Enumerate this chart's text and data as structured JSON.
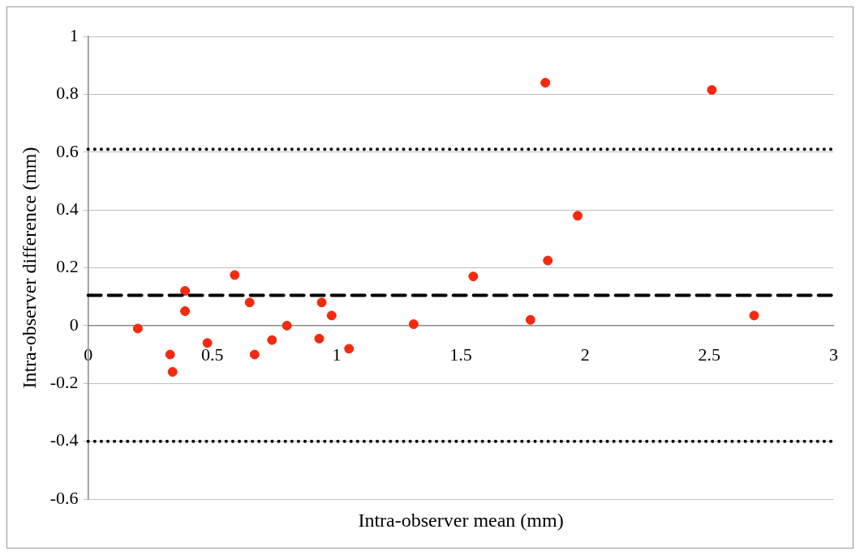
{
  "chart_data": {
    "type": "scatter",
    "xlabel": "Intra-observer mean (mm)",
    "ylabel": "Intra-observer difference (mm)",
    "x": [
      0.2,
      0.33,
      0.34,
      0.39,
      0.39,
      0.48,
      0.59,
      0.65,
      0.67,
      0.74,
      0.8,
      0.93,
      0.94,
      0.98,
      1.05,
      1.31,
      1.55,
      1.78,
      1.84,
      1.85,
      1.97,
      2.51,
      2.68
    ],
    "series": [
      {
        "color": "#f22a10",
        "values": [
          -0.01,
          -0.1,
          -0.16,
          0.05,
          0.12,
          -0.06,
          0.175,
          0.08,
          -0.1,
          -0.05,
          0,
          -0.045,
          0.08,
          0.035,
          -0.08,
          0.005,
          0.17,
          0.02,
          0.84,
          0.225,
          0.38,
          0.815,
          0.035
        ]
      }
    ],
    "xlim": [
      0,
      3
    ],
    "xticks": [
      0,
      0.5,
      1,
      1.5,
      2,
      2.5,
      3
    ],
    "ylim": [
      -0.6,
      1
    ],
    "yticks": [
      -0.6,
      -0.4,
      -0.2,
      0,
      0.2,
      0.4,
      0.6,
      0.8,
      1
    ],
    "ref_lines": [
      {
        "axis": "y",
        "value": 0.61,
        "color": "#000000",
        "line_style": "dotted"
      },
      {
        "axis": "y",
        "value": 0.105,
        "color": "#000000",
        "line_style": "dashed"
      },
      {
        "axis": "y",
        "value": -0.4,
        "color": "#000000",
        "line_style": "dotted"
      }
    ],
    "grid": "y",
    "legend": false,
    "marker": "circle"
  }
}
